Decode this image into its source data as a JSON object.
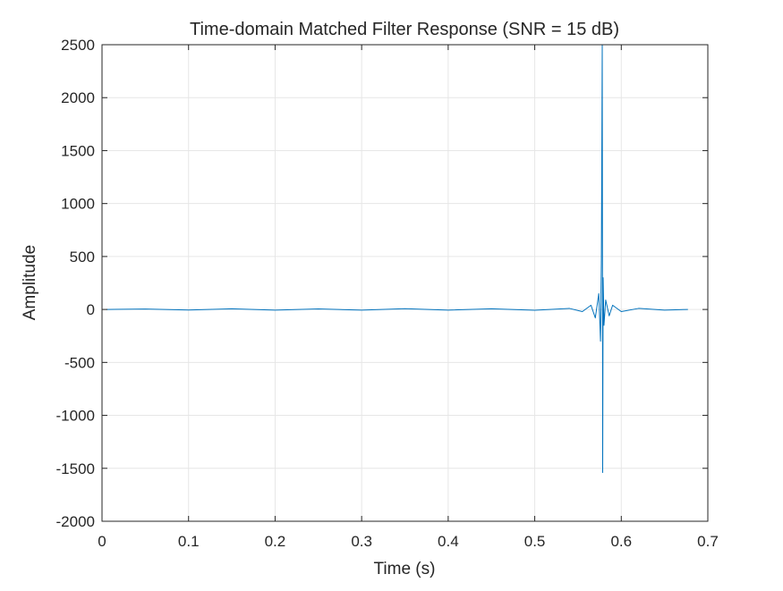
{
  "chart_data": {
    "type": "line",
    "title": "Time-domain Matched Filter Response (SNR = 15 dB)",
    "xlabel": "Time (s)",
    "ylabel": "Amplitude",
    "xlim": [
      0,
      0.7
    ],
    "ylim": [
      -2000,
      2500
    ],
    "xticks": [
      0,
      0.1,
      0.2,
      0.3,
      0.4,
      0.5,
      0.6,
      0.7
    ],
    "xtick_labels": [
      "0",
      "0.1",
      "0.2",
      "0.3",
      "0.4",
      "0.5",
      "0.6",
      "0.7"
    ],
    "yticks": [
      -2000,
      -1500,
      -1000,
      -500,
      0,
      500,
      1000,
      1500,
      2000,
      2500
    ],
    "ytick_labels": [
      "-2000",
      "-1500",
      "-1000",
      "-500",
      "0",
      "500",
      "1000",
      "1500",
      "2000",
      "2500"
    ],
    "grid": true,
    "series": [
      {
        "color": "#0072BD",
        "x": [
          0.005,
          0.05,
          0.1,
          0.15,
          0.2,
          0.25,
          0.3,
          0.35,
          0.4,
          0.45,
          0.5,
          0.54,
          0.555,
          0.565,
          0.57,
          0.574,
          0.576,
          0.577,
          0.578,
          0.5785,
          0.579,
          0.58,
          0.582,
          0.586,
          0.59,
          0.6,
          0.62,
          0.65,
          0.677
        ],
        "y": [
          0,
          4,
          -5,
          6,
          -6,
          5,
          -6,
          7,
          -6,
          6,
          -8,
          10,
          -20,
          40,
          -80,
          150,
          -300,
          470,
          2500,
          -1540,
          300,
          -150,
          90,
          -60,
          40,
          -20,
          10,
          -6,
          0
        ]
      }
    ]
  }
}
